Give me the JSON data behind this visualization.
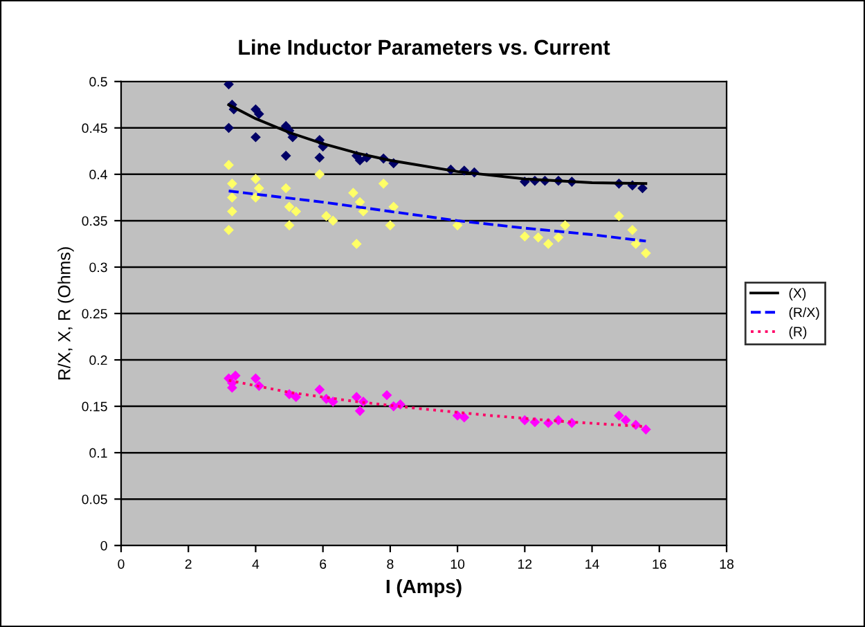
{
  "chart_data": {
    "type": "scatter",
    "title": "Line Inductor Parameters vs. Current",
    "xlabel": "I (Amps)",
    "ylabel": "R/X, X, R (Ohms)",
    "xlim": [
      0,
      18
    ],
    "xticks": [
      0,
      2,
      4,
      6,
      8,
      10,
      12,
      14,
      16,
      18
    ],
    "ylim": [
      0,
      0.5
    ],
    "yticks": [
      0,
      0.05,
      0.1,
      0.15,
      0.2,
      0.25,
      0.3,
      0.35,
      0.4,
      0.45,
      0.5
    ],
    "grid": "y",
    "legend": "right",
    "marker": "diamond",
    "series": [
      {
        "color": "#000066",
        "x": [
          3.2,
          3.3,
          3.35,
          3.2,
          4.0,
          4.1,
          4.0,
          4.9,
          5.0,
          5.1,
          4.9,
          5.9,
          6.0,
          5.9,
          7.0,
          7.1,
          7.3,
          7.8,
          8.1,
          9.8,
          10.2,
          10.5,
          12.0,
          12.3,
          12.6,
          13.0,
          13.4,
          14.8,
          15.2,
          15.5
        ],
        "values": [
          0.497,
          0.475,
          0.47,
          0.45,
          0.47,
          0.465,
          0.44,
          0.452,
          0.447,
          0.44,
          0.42,
          0.437,
          0.43,
          0.418,
          0.42,
          0.415,
          0.418,
          0.417,
          0.412,
          0.405,
          0.404,
          0.402,
          0.392,
          0.393,
          0.393,
          0.393,
          0.392,
          0.39,
          0.388,
          0.385
        ]
      },
      {
        "color": "#ffff66",
        "x": [
          3.2,
          3.3,
          3.3,
          3.3,
          3.2,
          4.0,
          4.1,
          4.0,
          4.9,
          5.0,
          5.2,
          5.0,
          5.9,
          6.1,
          6.3,
          6.9,
          7.1,
          7.2,
          7.0,
          7.8,
          8.1,
          8.0,
          10.0,
          12.0,
          12.4,
          12.7,
          13.0,
          13.2,
          14.8,
          15.2,
          15.3,
          15.6
        ],
        "values": [
          0.41,
          0.39,
          0.375,
          0.36,
          0.34,
          0.395,
          0.385,
          0.375,
          0.385,
          0.365,
          0.36,
          0.345,
          0.4,
          0.355,
          0.35,
          0.38,
          0.37,
          0.36,
          0.325,
          0.39,
          0.365,
          0.345,
          0.345,
          0.333,
          0.332,
          0.325,
          0.332,
          0.345,
          0.355,
          0.34,
          0.325,
          0.315
        ]
      },
      {
        "color": "#ff00ff",
        "x": [
          3.2,
          3.3,
          3.4,
          3.3,
          4.0,
          4.1,
          5.0,
          5.2,
          5.9,
          6.1,
          6.3,
          7.0,
          7.2,
          7.1,
          7.9,
          8.1,
          8.3,
          10.0,
          10.2,
          12.0,
          12.3,
          12.7,
          13.0,
          13.4,
          14.8,
          15.0,
          15.3,
          15.6
        ],
        "values": [
          0.18,
          0.175,
          0.183,
          0.17,
          0.18,
          0.172,
          0.163,
          0.16,
          0.168,
          0.158,
          0.155,
          0.16,
          0.155,
          0.145,
          0.162,
          0.15,
          0.152,
          0.14,
          0.138,
          0.135,
          0.133,
          0.132,
          0.135,
          0.132,
          0.14,
          0.135,
          0.13,
          0.125
        ]
      },
      {
        "type": "line",
        "name": "(X)",
        "color": "#000000",
        "line_style": "solid",
        "marker": "none",
        "x": [
          3.2,
          4,
          5,
          6,
          7,
          8,
          10,
          12,
          14,
          15.6
        ],
        "values": [
          0.475,
          0.46,
          0.445,
          0.433,
          0.423,
          0.415,
          0.403,
          0.395,
          0.391,
          0.39
        ]
      },
      {
        "type": "line",
        "name": "(R/X)",
        "color": "#0000ff",
        "line_style": "dashed",
        "marker": "none",
        "x": [
          3.2,
          6,
          8,
          10,
          12,
          14,
          15.6
        ],
        "values": [
          0.382,
          0.37,
          0.36,
          0.35,
          0.342,
          0.335,
          0.328
        ]
      },
      {
        "type": "line",
        "name": "(R)",
        "color": "#ff0066",
        "line_style": "dotted",
        "marker": "none",
        "x": [
          3.2,
          5,
          7,
          9,
          11,
          13,
          15.6
        ],
        "values": [
          0.178,
          0.165,
          0.155,
          0.147,
          0.14,
          0.134,
          0.128
        ]
      }
    ]
  }
}
